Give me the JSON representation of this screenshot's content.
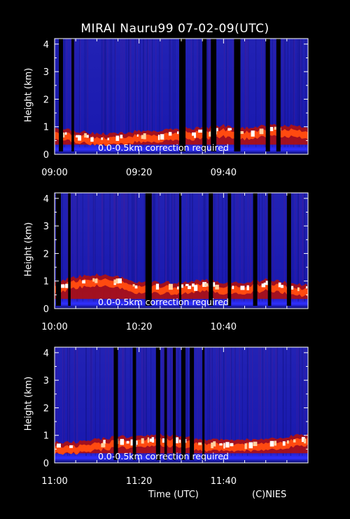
{
  "title": "MIRAI Nauru99 07-02-09(UTC)",
  "xlabel": "Time (UTC)",
  "credit": "(C)NIES",
  "colors": {
    "background": "#000000",
    "axis": "#ffffff",
    "low": "#1a1ab4",
    "high": "#ffffff"
  },
  "chart_data": [
    {
      "type": "heatmap",
      "ylabel": "Height (km)",
      "ylim": [
        0,
        4.2
      ],
      "yticks": [
        "0",
        "1",
        "2",
        "3",
        "4"
      ],
      "xlim": [
        "09:00",
        "10:00"
      ],
      "xticks": [
        "09:00",
        "09:20",
        "09:40"
      ],
      "annotation": "0.0-0.5km correction required",
      "cloud_base_km": [
        {
          "t": 0,
          "h": 0.8
        },
        {
          "t": 5,
          "h": 0.7
        },
        {
          "t": 10,
          "h": 0.6
        },
        {
          "t": 15,
          "h": 0.6
        },
        {
          "t": 20,
          "h": 0.7
        },
        {
          "t": 25,
          "h": 0.7
        },
        {
          "t": 30,
          "h": 0.8
        },
        {
          "t": 35,
          "h": 0.8
        },
        {
          "t": 40,
          "h": 0.9
        },
        {
          "t": 45,
          "h": 0.8
        },
        {
          "t": 50,
          "h": 0.9
        },
        {
          "t": 55,
          "h": 0.9
        },
        {
          "t": 60,
          "h": 0.8
        }
      ],
      "dropouts_min": [
        [
          1,
          2
        ],
        [
          4,
          4.6
        ],
        [
          29.5,
          31
        ],
        [
          35,
          36
        ],
        [
          37,
          38.3
        ],
        [
          42.5,
          44
        ],
        [
          50,
          51
        ],
        [
          52.5,
          53.5
        ]
      ]
    },
    {
      "type": "heatmap",
      "ylabel": "Height (km)",
      "ylim": [
        0,
        4.2
      ],
      "yticks": [
        "0",
        "1",
        "2",
        "3",
        "4"
      ],
      "xlim": [
        "10:00",
        "11:00"
      ],
      "xticks": [
        "10:00",
        "10:20",
        "10:40"
      ],
      "annotation": "0.0-0.5km correction required",
      "cloud_base_km": [
        {
          "t": 0,
          "h": 0.8
        },
        {
          "t": 5,
          "h": 1.0
        },
        {
          "t": 10,
          "h": 1.1
        },
        {
          "t": 15,
          "h": 1.0
        },
        {
          "t": 20,
          "h": 0.8
        },
        {
          "t": 25,
          "h": 0.8
        },
        {
          "t": 30,
          "h": 0.8
        },
        {
          "t": 35,
          "h": 0.9
        },
        {
          "t": 40,
          "h": 0.8
        },
        {
          "t": 45,
          "h": 0.8
        },
        {
          "t": 50,
          "h": 0.9
        },
        {
          "t": 55,
          "h": 0.8
        },
        {
          "t": 60,
          "h": 0.7
        }
      ],
      "dropouts_min": [
        [
          0.3,
          1.5
        ],
        [
          3.2,
          3.8
        ],
        [
          21.5,
          23
        ],
        [
          29.5,
          30
        ],
        [
          36.5,
          37.5
        ],
        [
          41,
          41.8
        ],
        [
          47,
          48
        ],
        [
          50.5,
          51.3
        ],
        [
          55,
          56
        ]
      ]
    },
    {
      "type": "heatmap",
      "ylabel": "Height (km)",
      "ylim": [
        0,
        4.2
      ],
      "yticks": [
        "0",
        "1",
        "2",
        "3",
        "4"
      ],
      "xlim": [
        "11:00",
        "12:00"
      ],
      "xticks": [
        "11:00",
        "11:20",
        "11:40"
      ],
      "annotation": "0.0-0.5km correction required",
      "cloud_base_km": [
        {
          "t": 0,
          "h": 0.6
        },
        {
          "t": 5,
          "h": 0.6
        },
        {
          "t": 10,
          "h": 0.7
        },
        {
          "t": 15,
          "h": 0.8
        },
        {
          "t": 20,
          "h": 0.8
        },
        {
          "t": 25,
          "h": 0.9
        },
        {
          "t": 30,
          "h": 0.8
        },
        {
          "t": 35,
          "h": 0.7
        },
        {
          "t": 40,
          "h": 0.7
        },
        {
          "t": 45,
          "h": 0.7
        },
        {
          "t": 50,
          "h": 0.7
        },
        {
          "t": 55,
          "h": 0.8
        },
        {
          "t": 60,
          "h": 0.9
        }
      ],
      "dropouts_min": [
        [
          14,
          15
        ],
        [
          18.5,
          19.3
        ],
        [
          24,
          25
        ],
        [
          26,
          26.6
        ],
        [
          28,
          28.7
        ],
        [
          30,
          31
        ],
        [
          32,
          33
        ],
        [
          35,
          35.5
        ]
      ]
    }
  ]
}
